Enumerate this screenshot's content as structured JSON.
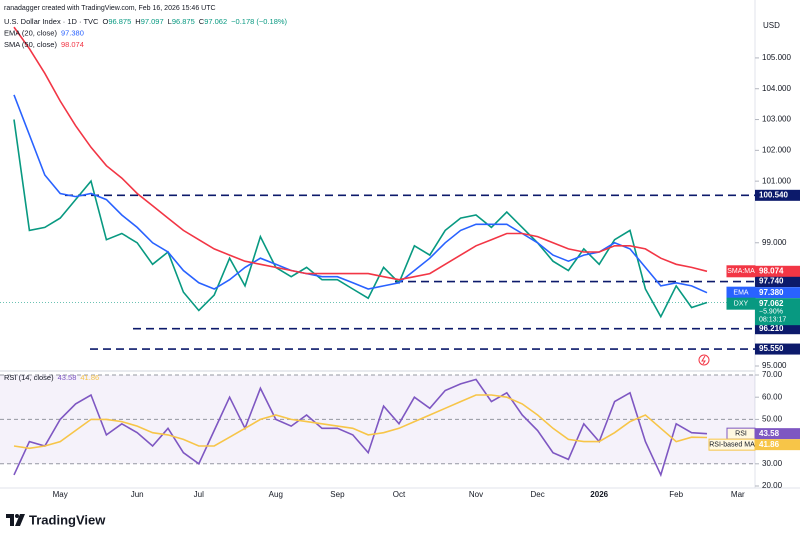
{
  "header": {
    "credit": "ranadagger created with TradingView.com, Feb 16, 2026 15:46 UTC",
    "ohlc": [
      "O",
      "96.875",
      "H",
      "97.097",
      "L",
      "96.875",
      "C",
      "97.062",
      "−0.178 (−0.18%)"
    ],
    "currency": "USD"
  },
  "footer": {
    "brand": "TradingView"
  },
  "chart_data": [
    {
      "type": "line",
      "ylim": [
        94.87,
        106.88
      ],
      "yticks": [
        {
          "value": 95,
          "label": "95.000"
        },
        {
          "value": 99,
          "label": "99.000"
        },
        {
          "value": 101,
          "label": "101.000"
        },
        {
          "value": 102,
          "label": "102.000"
        },
        {
          "value": 103,
          "label": "103.000"
        },
        {
          "value": 104,
          "label": "104.000"
        },
        {
          "value": 105,
          "label": "105.000"
        }
      ],
      "grid": false,
      "series": [
        {
          "name": "U.S. Dollar Index · 1D · TVC",
          "color": "#089981",
          "badge_tag": "DXY",
          "last_label": "97.062",
          "badge_extra": [
            "−5.90%",
            "08:13:17"
          ],
          "values": [
            103.0,
            99.4,
            99.5,
            99.8,
            100.4,
            101.0,
            99.1,
            99.3,
            99.0,
            98.3,
            98.7,
            97.4,
            96.8,
            97.3,
            98.5,
            97.6,
            99.2,
            98.2,
            97.9,
            98.2,
            97.8,
            97.8,
            97.5,
            97.2,
            98.2,
            97.7,
            98.9,
            98.6,
            99.4,
            99.8,
            99.9,
            99.5,
            100.0,
            99.5,
            99.0,
            98.4,
            98.1,
            98.8,
            98.3,
            99.1,
            99.4,
            97.5,
            96.6,
            97.6,
            96.9,
            97.062,
            null,
            null
          ]
        },
        {
          "name": "EMA (20, close)",
          "color": "#2962ff",
          "badge_tag": "EMA",
          "last_label": "97.380",
          "values": [
            103.8,
            102.5,
            101.2,
            100.6,
            100.5,
            100.6,
            100.4,
            99.9,
            99.5,
            99.0,
            98.7,
            98.1,
            97.7,
            97.5,
            97.8,
            98.2,
            98.5,
            98.3,
            98.1,
            98.0,
            97.9,
            97.9,
            97.7,
            97.5,
            97.6,
            97.7,
            98.1,
            98.5,
            99.0,
            99.4,
            99.6,
            99.6,
            99.6,
            99.3,
            99.0,
            98.6,
            98.4,
            98.6,
            98.7,
            99.0,
            98.8,
            98.2,
            97.6,
            97.7,
            97.6,
            97.38,
            null,
            null
          ]
        },
        {
          "name": "SMA (50, close)",
          "color": "#f23645",
          "badge_tag": "SMA:MA",
          "last_label": "98.074",
          "values": [
            106.0,
            105.3,
            104.5,
            103.6,
            102.8,
            102.1,
            101.5,
            101.1,
            100.6,
            100.2,
            99.8,
            99.4,
            99.1,
            98.8,
            98.6,
            98.4,
            98.3,
            98.2,
            98.1,
            98.0,
            98.0,
            98.0,
            98.0,
            98.0,
            97.9,
            97.8,
            97.9,
            98.0,
            98.3,
            98.6,
            98.9,
            99.1,
            99.3,
            99.3,
            99.2,
            99.0,
            98.8,
            98.7,
            98.7,
            98.9,
            98.9,
            98.8,
            98.5,
            98.3,
            98.2,
            98.074,
            null,
            null
          ]
        }
      ],
      "levels": [
        {
          "value": 100.54,
          "label": "100.540"
        },
        {
          "value": 97.74,
          "label": "97.740"
        },
        {
          "value": 96.21,
          "label": "96.210"
        },
        {
          "value": 95.55,
          "label": "95.550"
        }
      ],
      "level_color": "#0c1a6b"
    },
    {
      "type": "line",
      "categories": [
        null,
        null,
        null,
        "May",
        null,
        null,
        null,
        null,
        "Jun",
        null,
        null,
        null,
        "Jul",
        null,
        null,
        null,
        null,
        "Aug",
        null,
        null,
        null,
        "Sep",
        null,
        null,
        null,
        "Oct",
        null,
        null,
        null,
        null,
        "Nov",
        null,
        null,
        null,
        "Dec",
        null,
        null,
        null,
        "2026",
        null,
        null,
        null,
        null,
        "Feb",
        null,
        null,
        null,
        "Mar"
      ],
      "ylim": [
        19.1,
        71.35
      ],
      "yticks": [
        {
          "value": 70,
          "label": "70.00"
        },
        {
          "value": 60,
          "label": "60.00"
        },
        {
          "value": 50,
          "label": "50.00"
        },
        {
          "value": 30,
          "label": "30.00"
        },
        {
          "value": 20,
          "label": "20.00"
        }
      ],
      "series": [
        {
          "name": "RSI (14, close)",
          "color": "#7e57c2",
          "badge_tag": "RSI",
          "last_label": "43.58",
          "values": [
            25,
            40,
            38,
            50,
            57,
            61,
            43,
            48,
            44,
            38,
            46,
            35,
            30,
            45,
            60,
            46,
            64,
            50,
            47,
            52,
            46,
            46,
            43,
            35,
            56,
            48,
            60,
            55,
            63,
            66,
            68,
            58,
            62,
            52,
            45,
            35,
            32,
            48,
            40,
            58,
            62,
            40,
            25,
            48,
            44,
            43.58,
            null,
            null
          ]
        },
        {
          "name": "RSI-based MA",
          "color": "#f7c548",
          "last_label": "41.86",
          "values": [
            38,
            37,
            38,
            40,
            45,
            50,
            50,
            49,
            47,
            44,
            43,
            41,
            38,
            38,
            42,
            46,
            50,
            52,
            50,
            49,
            48,
            47,
            46,
            43,
            44,
            46,
            49,
            52,
            55,
            58,
            61,
            61,
            60,
            57,
            52,
            46,
            41,
            40,
            40,
            44,
            49,
            52,
            46,
            40,
            42,
            41.86,
            null,
            null
          ]
        }
      ]
    }
  ]
}
